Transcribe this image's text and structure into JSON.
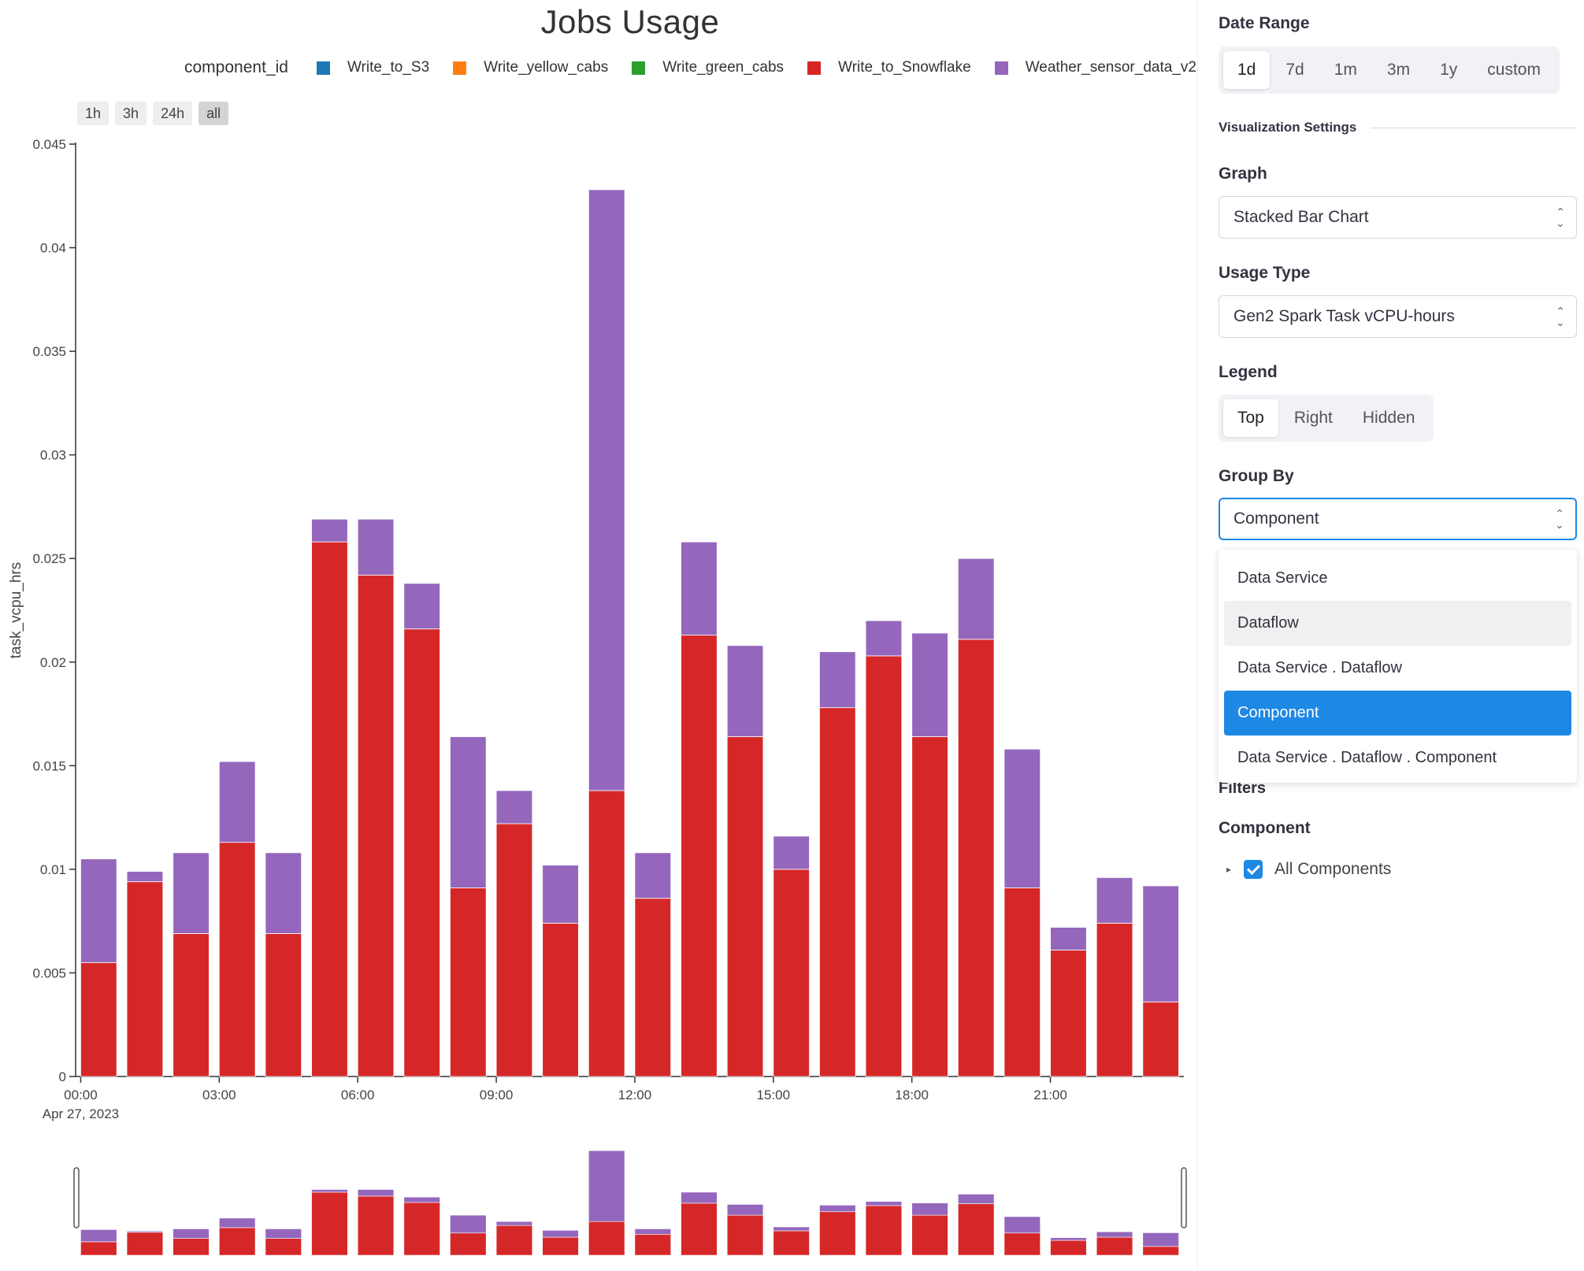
{
  "chart": {
    "title": "Jobs Usage",
    "legend_title": "component_id",
    "range_buttons": [
      {
        "label": "1h",
        "active": false
      },
      {
        "label": "3h",
        "active": false
      },
      {
        "label": "24h",
        "active": false
      },
      {
        "label": "all",
        "active": true
      }
    ],
    "first_date_label": "Apr 27, 2023"
  },
  "chart_data": {
    "type": "bar",
    "stacked": true,
    "title": "Jobs Usage",
    "xlabel": "",
    "ylabel": "task_vcpu_hrs",
    "ylim": [
      0,
      0.045
    ],
    "y_ticks": [
      0,
      0.005,
      0.01,
      0.015,
      0.02,
      0.025,
      0.03,
      0.035,
      0.04,
      0.045
    ],
    "y_tick_labels": [
      "0",
      "0.005",
      "0.01",
      "0.015",
      "0.02",
      "0.025",
      "0.03",
      "0.035",
      "0.04",
      "0.045"
    ],
    "x_tick_labels": [
      "00:00",
      "03:00",
      "06:00",
      "09:00",
      "12:00",
      "15:00",
      "18:00",
      "21:00"
    ],
    "legend_position": "top",
    "grid": false,
    "x": [
      "00:00",
      "01:00",
      "02:00",
      "03:00",
      "04:00",
      "05:00",
      "06:00",
      "07:00",
      "08:00",
      "09:00",
      "10:00",
      "11:00",
      "12:00",
      "13:00",
      "14:00",
      "15:00",
      "16:00",
      "17:00",
      "18:00",
      "19:00",
      "20:00",
      "21:00",
      "22:00",
      "23:00"
    ],
    "series": [
      {
        "name": "Write_to_S3",
        "color": "#1f77b4",
        "values": [
          0,
          0,
          0,
          0,
          0,
          0,
          0,
          0,
          0,
          0,
          0,
          0,
          0,
          0,
          0,
          0,
          0,
          0,
          0,
          0,
          0,
          0,
          0,
          0
        ]
      },
      {
        "name": "Write_yellow_cabs",
        "color": "#ff7f0e",
        "values": [
          0,
          0,
          0,
          0,
          0,
          0,
          0,
          0,
          0,
          0,
          0,
          0,
          0,
          0,
          0,
          0,
          0,
          0,
          0,
          0,
          0,
          0,
          0,
          0
        ]
      },
      {
        "name": "Write_green_cabs",
        "color": "#2ca02c",
        "values": [
          0,
          0,
          0,
          0,
          0,
          0,
          0,
          0,
          0,
          0,
          0,
          0,
          0,
          0,
          0,
          0,
          0,
          0,
          0,
          0,
          0,
          0,
          0,
          0
        ]
      },
      {
        "name": "Write_to_Snowflake",
        "color": "#d62728",
        "values": [
          0.0055,
          0.0094,
          0.0069,
          0.0113,
          0.0069,
          0.0258,
          0.0242,
          0.0216,
          0.0091,
          0.0122,
          0.0074,
          0.0138,
          0.0086,
          0.0213,
          0.0164,
          0.01,
          0.0178,
          0.0203,
          0.0164,
          0.0211,
          0.0091,
          0.0061,
          0.0074,
          0.0036
        ]
      },
      {
        "name": "Weather_sensor_data_v2",
        "color": "#9467bd",
        "values": [
          0.005,
          0.0005,
          0.0039,
          0.0039,
          0.0039,
          0.0011,
          0.0027,
          0.0022,
          0.0073,
          0.0016,
          0.0028,
          0.029,
          0.0022,
          0.0045,
          0.0044,
          0.0016,
          0.0027,
          0.0017,
          0.005,
          0.0039,
          0.0067,
          0.0011,
          0.0022,
          0.0056
        ]
      }
    ]
  },
  "sidebar": {
    "date_range": {
      "label": "Date Range",
      "options": [
        {
          "label": "1d",
          "active": true
        },
        {
          "label": "7d",
          "active": false
        },
        {
          "label": "1m",
          "active": false
        },
        {
          "label": "3m",
          "active": false
        },
        {
          "label": "1y",
          "active": false
        },
        {
          "label": "custom",
          "active": false
        }
      ]
    },
    "vis_settings_label": "Visualization Settings",
    "graph": {
      "label": "Graph",
      "value": "Stacked Bar Chart"
    },
    "usage_type": {
      "label": "Usage Type",
      "value": "Gen2 Spark Task vCPU-hours"
    },
    "legend": {
      "label": "Legend",
      "options": [
        {
          "label": "Top",
          "active": true
        },
        {
          "label": "Right",
          "active": false
        },
        {
          "label": "Hidden",
          "active": false
        }
      ]
    },
    "group_by": {
      "label": "Group By",
      "value": "Component",
      "options": [
        {
          "label": "Data Service",
          "state": "normal"
        },
        {
          "label": "Dataflow",
          "state": "hover"
        },
        {
          "label": "Data Service . Dataflow",
          "state": "normal"
        },
        {
          "label": "Component",
          "state": "selected"
        },
        {
          "label": "Data Service . Dataflow . Component",
          "state": "normal"
        }
      ]
    },
    "filters_label": "Filters",
    "component": {
      "label": "Component",
      "tree_item": "All Components",
      "checked": true
    }
  }
}
